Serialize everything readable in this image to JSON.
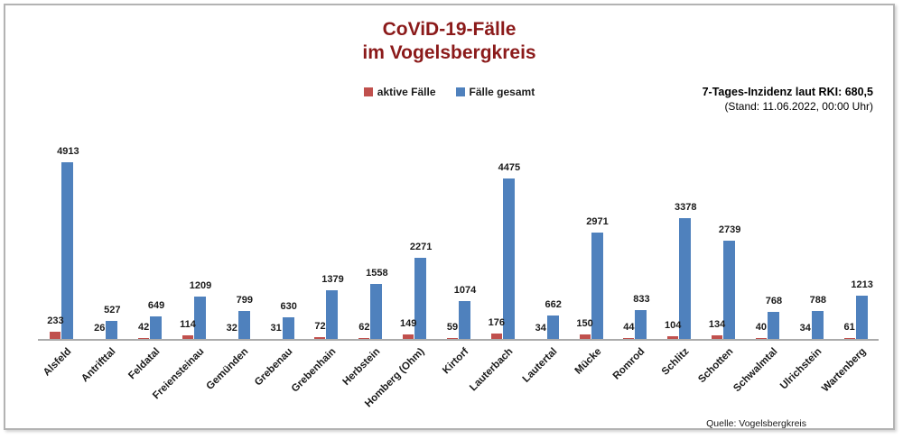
{
  "title": {
    "line1": "CoViD-19-Fälle",
    "line2": "im Vogelsbergkreis"
  },
  "legend": {
    "items": [
      {
        "label": "aktive Fälle",
        "color": "#c0504d"
      },
      {
        "label": "Fälle gesamt",
        "color": "#4f81bd"
      }
    ]
  },
  "info": {
    "line1": "7-Tages-Inzidenz laut RKI: 680,5",
    "line2": "(Stand: 11.06.2022, 00:00 Uhr)"
  },
  "source": "Quelle: Vogelsbergkreis",
  "chart_data": {
    "type": "bar",
    "title": "CoViD-19-Fälle im Vogelsbergkreis",
    "categories": [
      "Alsfeld",
      "Antrifttal",
      "Feldatal",
      "Freiensteinau",
      "Gemünden",
      "Grebenau",
      "Grebenhain",
      "Herbstein",
      "Homberg (Ohm)",
      "Kirtorf",
      "Lauterbach",
      "Lautertal",
      "Mücke",
      "Romrod",
      "Schlitz",
      "Schotten",
      "Schwalmtal",
      "Ulrichstein",
      "Wartenberg"
    ],
    "series": [
      {
        "name": "aktive Fälle",
        "color": "#c0504d",
        "values": [
          233,
          26,
          42,
          114,
          32,
          31,
          72,
          62,
          149,
          59,
          176,
          34,
          150,
          44,
          104,
          134,
          40,
          34,
          61
        ]
      },
      {
        "name": "Fälle gesamt",
        "color": "#4f81bd",
        "values": [
          4913,
          527,
          649,
          1209,
          799,
          630,
          1379,
          1558,
          2271,
          1074,
          4475,
          662,
          2971,
          833,
          3378,
          2739,
          768,
          788,
          1213
        ]
      }
    ],
    "data_labels": true,
    "grid": false,
    "legend_position": "top-center",
    "ylim": [
      0,
      5000
    ],
    "xlabel": "",
    "ylabel": ""
  }
}
